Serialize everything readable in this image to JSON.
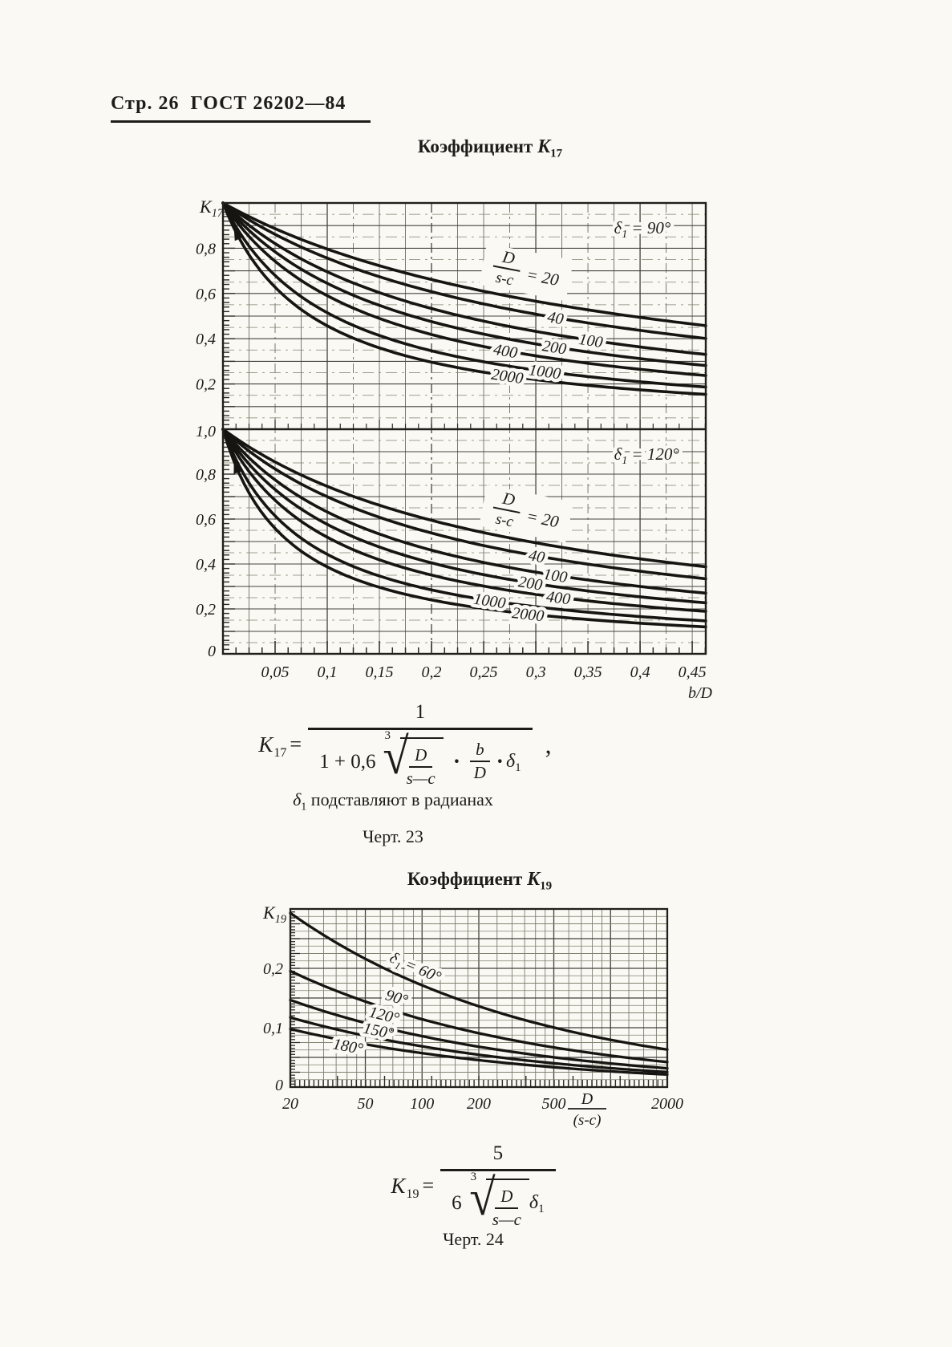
{
  "header": {
    "page_label": "Стр. 26",
    "doc_label": "ГОСТ 26202—84"
  },
  "section1": {
    "title_prefix": "Коэффициент",
    "symbol": "K",
    "symbol_sub": "17"
  },
  "section2": {
    "title_prefix": "Коэффициент",
    "symbol": "K",
    "symbol_sub": "19"
  },
  "note_radians": {
    "symbol": "δ",
    "symbol_sub": "1",
    "text": "подставляют в радианах"
  },
  "caption_fig23": "Черт. 23",
  "caption_fig24": "Черт. 24",
  "formula17": {
    "lhs_sym": "K",
    "lhs_sub": "17",
    "equals": "=",
    "numerator": "1",
    "den_prefix": "1 + 0,6",
    "root_index": "3",
    "root_num": "D",
    "root_den": "s—c",
    "dot": "·",
    "bd_num": "b",
    "bd_den": "D",
    "dot2": "·",
    "delta_sym": "δ",
    "delta_sub": "1",
    "comma": ","
  },
  "formula19": {
    "lhs_sym": "K",
    "lhs_sub": "19",
    "equals": "=",
    "numerator": "5",
    "den_prefix": "6",
    "root_index": "3",
    "root_num": "D",
    "root_den": "s—c",
    "delta_sym": "δ",
    "delta_sub": "1"
  },
  "ink_color": "#1d1c18",
  "paper_color": "#faf9f4",
  "chart_data": [
    {
      "type": "line",
      "title": "Коэффициент K17 при δ1 = 90°",
      "panel_label": {
        "sym": "δ",
        "sub": "1",
        "rest": " = 90°"
      },
      "ylabel_sym": "K",
      "ylabel_sub": "17",
      "xlabel": "b/D",
      "xlim": [
        0,
        0.463
      ],
      "ylim": [
        0,
        1
      ],
      "grid": true,
      "model": "K17 = 1/(1 + 0.6·(D/(s-c))^(1/3)·(b/D)·δ1),  δ1 в радианах",
      "delta1_deg": 90,
      "ratio_label": {
        "num": "D",
        "den": "s-c",
        "eq": "="
      },
      "y_ticks": [
        {
          "v": 0.8,
          "label": "0,8"
        },
        {
          "v": 0.6,
          "label": "0,6"
        },
        {
          "v": 0.4,
          "label": "0,4"
        },
        {
          "v": 0.2,
          "label": "0,2"
        }
      ],
      "x_ticks": [],
      "x": [
        0,
        0.05,
        0.1,
        0.15,
        0.2,
        0.25,
        0.3,
        0.35,
        0.4,
        0.45
      ],
      "series": [
        {
          "name": "20",
          "coef": 2.5583,
          "label_x": 0.272,
          "values": [
            1.0,
            0.887,
            0.796,
            0.723,
            0.662,
            0.61,
            0.566,
            0.528,
            0.494,
            0.465
          ]
        },
        {
          "name": "40",
          "coef": 3.2232,
          "label_x": 0.318,
          "values": [
            1.0,
            0.861,
            0.756,
            0.674,
            0.608,
            0.554,
            0.508,
            0.47,
            0.437,
            0.408
          ]
        },
        {
          "name": "100",
          "coef": 4.3747,
          "label_x": 0.352,
          "values": [
            1.0,
            0.821,
            0.696,
            0.604,
            0.533,
            0.478,
            0.432,
            0.395,
            0.364,
            0.337
          ]
        },
        {
          "name": "200",
          "coef": 5.5117,
          "label_x": 0.317,
          "values": [
            1.0,
            0.784,
            0.645,
            0.547,
            0.476,
            0.421,
            0.377,
            0.341,
            0.312,
            0.287
          ]
        },
        {
          "name": "400",
          "coef": 6.9443,
          "label_x": 0.27,
          "values": [
            1.0,
            0.742,
            0.59,
            0.49,
            0.419,
            0.365,
            0.324,
            0.292,
            0.265,
            0.242
          ]
        },
        {
          "name": "1000",
          "coef": 9.4248,
          "label_x": 0.308,
          "values": [
            1.0,
            0.68,
            0.515,
            0.414,
            0.347,
            0.298,
            0.261,
            0.233,
            0.21,
            0.191
          ]
        },
        {
          "name": "2000",
          "coef": 11.8745,
          "label_x": 0.272,
          "values": [
            1.0,
            0.627,
            0.457,
            0.36,
            0.296,
            0.252,
            0.219,
            0.194,
            0.174,
            0.158
          ]
        }
      ]
    },
    {
      "type": "line",
      "title": "Коэффициент K17 при δ1 = 120°",
      "panel_label": {
        "sym": "δ",
        "sub": "1",
        "rest": " = 120°"
      },
      "ylabel_sym": "K",
      "ylabel_sub": "17",
      "xlabel": "b/D",
      "xlim": [
        0,
        0.463
      ],
      "ylim": [
        0,
        1
      ],
      "grid": true,
      "model": "K17 = 1/(1 + 0.6·(D/(s-c))^(1/3)·(b/D)·δ1),  δ1 в радианах",
      "delta1_deg": 120,
      "ratio_label": {
        "num": "D",
        "den": "s-c",
        "eq": "="
      },
      "y_ticks": [
        {
          "v": 1.0,
          "label": "1,0"
        },
        {
          "v": 0.8,
          "label": "0,8"
        },
        {
          "v": 0.6,
          "label": "0,6"
        },
        {
          "v": 0.4,
          "label": "0,4"
        },
        {
          "v": 0.2,
          "label": "0,2"
        },
        {
          "v": 0,
          "label": "0"
        }
      ],
      "x_ticks": [
        {
          "v": 0.05,
          "label": "0,05"
        },
        {
          "v": 0.1,
          "label": "0,1"
        },
        {
          "v": 0.15,
          "label": "0,15"
        },
        {
          "v": 0.2,
          "label": "0,2"
        },
        {
          "v": 0.25,
          "label": "0,25"
        },
        {
          "v": 0.3,
          "label": "0,3"
        },
        {
          "v": 0.35,
          "label": "0,35"
        },
        {
          "v": 0.4,
          "label": "0,4"
        },
        {
          "v": 0.45,
          "label": "0,45"
        }
      ],
      "x": [
        0,
        0.05,
        0.1,
        0.15,
        0.2,
        0.25,
        0.3,
        0.35,
        0.4,
        0.45
      ],
      "series": [
        {
          "name": "20",
          "coef": 3.4111,
          "label_x": 0.272,
          "values": [
            1.0,
            0.854,
            0.746,
            0.661,
            0.594,
            0.54,
            0.494,
            0.456,
            0.423,
            0.394
          ]
        },
        {
          "name": "40",
          "coef": 4.2978,
          "label_x": 0.3,
          "values": [
            1.0,
            0.823,
            0.699,
            0.608,
            0.538,
            0.482,
            0.437,
            0.399,
            0.368,
            0.341
          ]
        },
        {
          "name": "100",
          "coef": 5.8329,
          "label_x": 0.318,
          "values": [
            1.0,
            0.774,
            0.632,
            0.533,
            0.462,
            0.407,
            0.364,
            0.329,
            0.3,
            0.276
          ]
        },
        {
          "name": "200",
          "coef": 7.3489,
          "label_x": 0.294,
          "values": [
            1.0,
            0.731,
            0.576,
            0.476,
            0.405,
            0.352,
            0.312,
            0.28,
            0.254,
            0.232
          ]
        },
        {
          "name": "400",
          "coef": 9.2591,
          "label_x": 0.321,
          "values": [
            1.0,
            0.684,
            0.519,
            0.419,
            0.351,
            0.302,
            0.265,
            0.236,
            0.213,
            0.194
          ]
        },
        {
          "name": "1000",
          "coef": 12.5664,
          "label_x": 0.255,
          "values": [
            1.0,
            0.614,
            0.443,
            0.347,
            0.285,
            0.241,
            0.21,
            0.185,
            0.166,
            0.15
          ]
        },
        {
          "name": "2000",
          "coef": 15.8327,
          "label_x": 0.292,
          "values": [
            1.0,
            0.558,
            0.387,
            0.296,
            0.24,
            0.202,
            0.174,
            0.153,
            0.136,
            0.123
          ]
        }
      ]
    },
    {
      "type": "line",
      "title": "Коэффициент K19",
      "xscale": "log",
      "ylabel_sym": "K",
      "ylabel_sub": "19",
      "xlabel_frac": {
        "num": "D",
        "den": "(s-c)"
      },
      "xlim": [
        20,
        2000
      ],
      "ylim": [
        0,
        0.3
      ],
      "grid": true,
      "model": "K19 = 5/(6·(D/(s-c))^(1/3)·δ1),  δ1 в радианах",
      "y_ticks": [
        {
          "v": 0.2,
          "label": "0,2"
        },
        {
          "v": 0.1,
          "label": "0,1"
        },
        {
          "v": 0,
          "label": "0"
        }
      ],
      "x_ticks": [
        {
          "v": 20,
          "label": "20"
        },
        {
          "v": 50,
          "label": "50"
        },
        {
          "v": 100,
          "label": "100"
        },
        {
          "v": 200,
          "label": "200"
        },
        {
          "v": 500,
          "label": "500"
        },
        {
          "v": 2000,
          "label": "2000"
        }
      ],
      "x": [
        20,
        50,
        100,
        200,
        500,
        1000,
        2000
      ],
      "series": [
        {
          "name": "δ₁ = 60°",
          "label_parts": {
            "sym": "δ",
            "sub": "1",
            "rest": " = 60°"
          },
          "deg": 60,
          "coef": 0.7958,
          "label_x": 90,
          "label_dy": -12,
          "values": [
            0.293,
            0.216,
            0.171,
            0.136,
            0.1,
            0.08,
            0.063
          ]
        },
        {
          "name": "90°",
          "deg": 90,
          "coef": 0.5305,
          "label_x": 72,
          "label_dy": -11,
          "values": [
            0.195,
            0.144,
            0.114,
            0.091,
            0.067,
            0.053,
            0.042
          ]
        },
        {
          "name": "120°",
          "deg": 120,
          "coef": 0.3979,
          "label_x": 62,
          "label_dy": -9,
          "values": [
            0.147,
            0.108,
            0.086,
            0.068,
            0.05,
            0.04,
            0.032
          ]
        },
        {
          "name": "150°",
          "deg": 150,
          "coef": 0.3183,
          "label_x": 58,
          "label_dy": -3,
          "values": [
            0.117,
            0.086,
            0.069,
            0.054,
            0.04,
            0.032,
            0.025
          ]
        },
        {
          "name": "180°",
          "deg": 180,
          "coef": 0.2653,
          "label_x": 40,
          "label_dy": 13,
          "values": [
            0.098,
            0.072,
            0.057,
            0.045,
            0.033,
            0.027,
            0.021
          ]
        }
      ]
    }
  ]
}
